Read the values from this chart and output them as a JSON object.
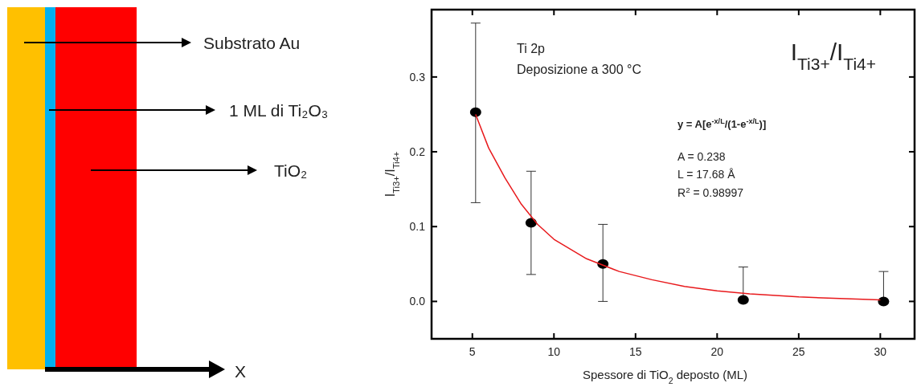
{
  "chart_data": {
    "type": "scatter",
    "title": "I$_{Ti3+}$/I$_{Ti4+}$",
    "xlabel": "Spessore di TiO$_{2}$ deposto (ML)",
    "ylabel": "I$_{Ti3+}$/I$_{Ti4+}$",
    "annotations": [
      "Ti 2p",
      "Deposizione a 300 °C",
      "y = A[e$^{-x/L}$/(1-e$^{-x/L}$)]",
      "A = 0.238",
      "L = 17.68 Å",
      "R$^{2}$ = 0.98997",
      "Substrato Au",
      "1 ML di Ti₂O₃",
      "TiO₂",
      "X"
    ],
    "xlim": [
      2.5,
      32.1
    ],
    "xticks": [
      5,
      10,
      15,
      20,
      25,
      30
    ],
    "ylim": [
      -0.05,
      0.39
    ],
    "yticks": [
      {
        "value": 0,
        "label": "0.0"
      },
      0.1,
      0.2,
      0.3
    ],
    "series": [
      {
        "color": "#000000",
        "marker": "circle",
        "x": [
          5.2,
          8.6,
          13.0,
          21.6,
          30.2
        ],
        "values": [
          0.253,
          0.105,
          0.05,
          0.002,
          0.0
        ],
        "errors": [
          [
            0.132,
            0.372
          ],
          [
            0.036,
            0.174
          ],
          [
            0.0,
            0.103
          ],
          [
            0.002,
            0.046
          ],
          [
            0.0,
            0.04
          ]
        ]
      },
      {
        "type": "line",
        "color": "#e8191c",
        "x": [
          5.2,
          6,
          7,
          8,
          9,
          10,
          12,
          14,
          16,
          18,
          20,
          22,
          25,
          30
        ],
        "values": [
          0.25,
          0.205,
          0.165,
          0.13,
          0.103,
          0.083,
          0.057,
          0.04,
          0.029,
          0.02,
          0.014,
          0.01,
          0.006,
          0.002
        ]
      }
    ],
    "grid": false
  }
}
